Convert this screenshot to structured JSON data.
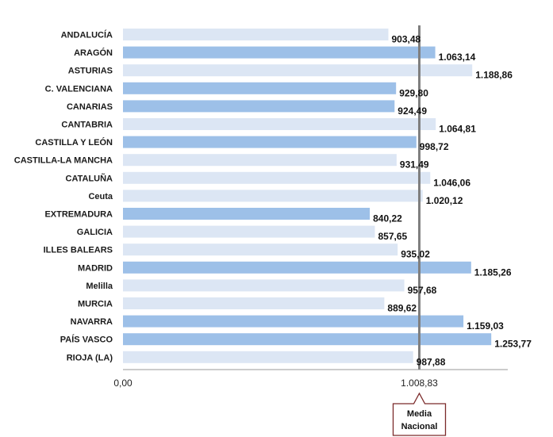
{
  "chart_data": {
    "type": "bar",
    "orientation": "horizontal",
    "categories": [
      "ANDALUCÍA",
      "ARAGÓN",
      "ASTURIAS",
      "C. VALENCIANA",
      "CANARIAS",
      "CANTABRIA",
      "CASTILLA Y LEÓN",
      "CASTILLA-LA MANCHA",
      "CATALUÑA",
      "Ceuta",
      "EXTREMADURA",
      "GALICIA",
      "ILLES BALEARS",
      "MADRID",
      "Melilla",
      "MURCIA",
      "NAVARRA",
      "PAÍS VASCO",
      "RIOJA (LA)"
    ],
    "values": [
      903.48,
      1063.14,
      1188.86,
      929.8,
      924.49,
      1064.81,
      998.72,
      931.49,
      1046.06,
      1020.12,
      840.22,
      857.65,
      935.02,
      1185.26,
      957.68,
      889.62,
      1159.03,
      1253.77,
      987.88
    ],
    "value_labels": [
      "903,48",
      "1.063,14",
      "1.188,86",
      "929,80",
      "924,49",
      "1.064,81",
      "998,72",
      "931,49",
      "1.046,06",
      "1.020,12",
      "840,22",
      "857,65",
      "935,02",
      "1.185,26",
      "957,68",
      "889,62",
      "1.159,03",
      "1.253,77",
      "987,88"
    ],
    "highlighted": [
      false,
      true,
      false,
      true,
      true,
      false,
      true,
      false,
      false,
      false,
      true,
      false,
      false,
      true,
      false,
      false,
      true,
      true,
      false
    ],
    "xlim": [
      0,
      1310
    ],
    "x_ticks": [
      {
        "value": 0,
        "label": "0,00"
      },
      {
        "value": 1008.83,
        "label": "1.008,83"
      }
    ],
    "reference_line": {
      "value": 1008.83,
      "label_line1": "Media",
      "label_line2": "Nacional"
    },
    "colors": {
      "bar_highlight": "#9dc0e8",
      "bar_normal": "#dce6f4",
      "reference_line": "#7f7f7f",
      "callout_border": "#7b2a2a",
      "axis": "#999999"
    },
    "grid": false,
    "legend": "none"
  }
}
